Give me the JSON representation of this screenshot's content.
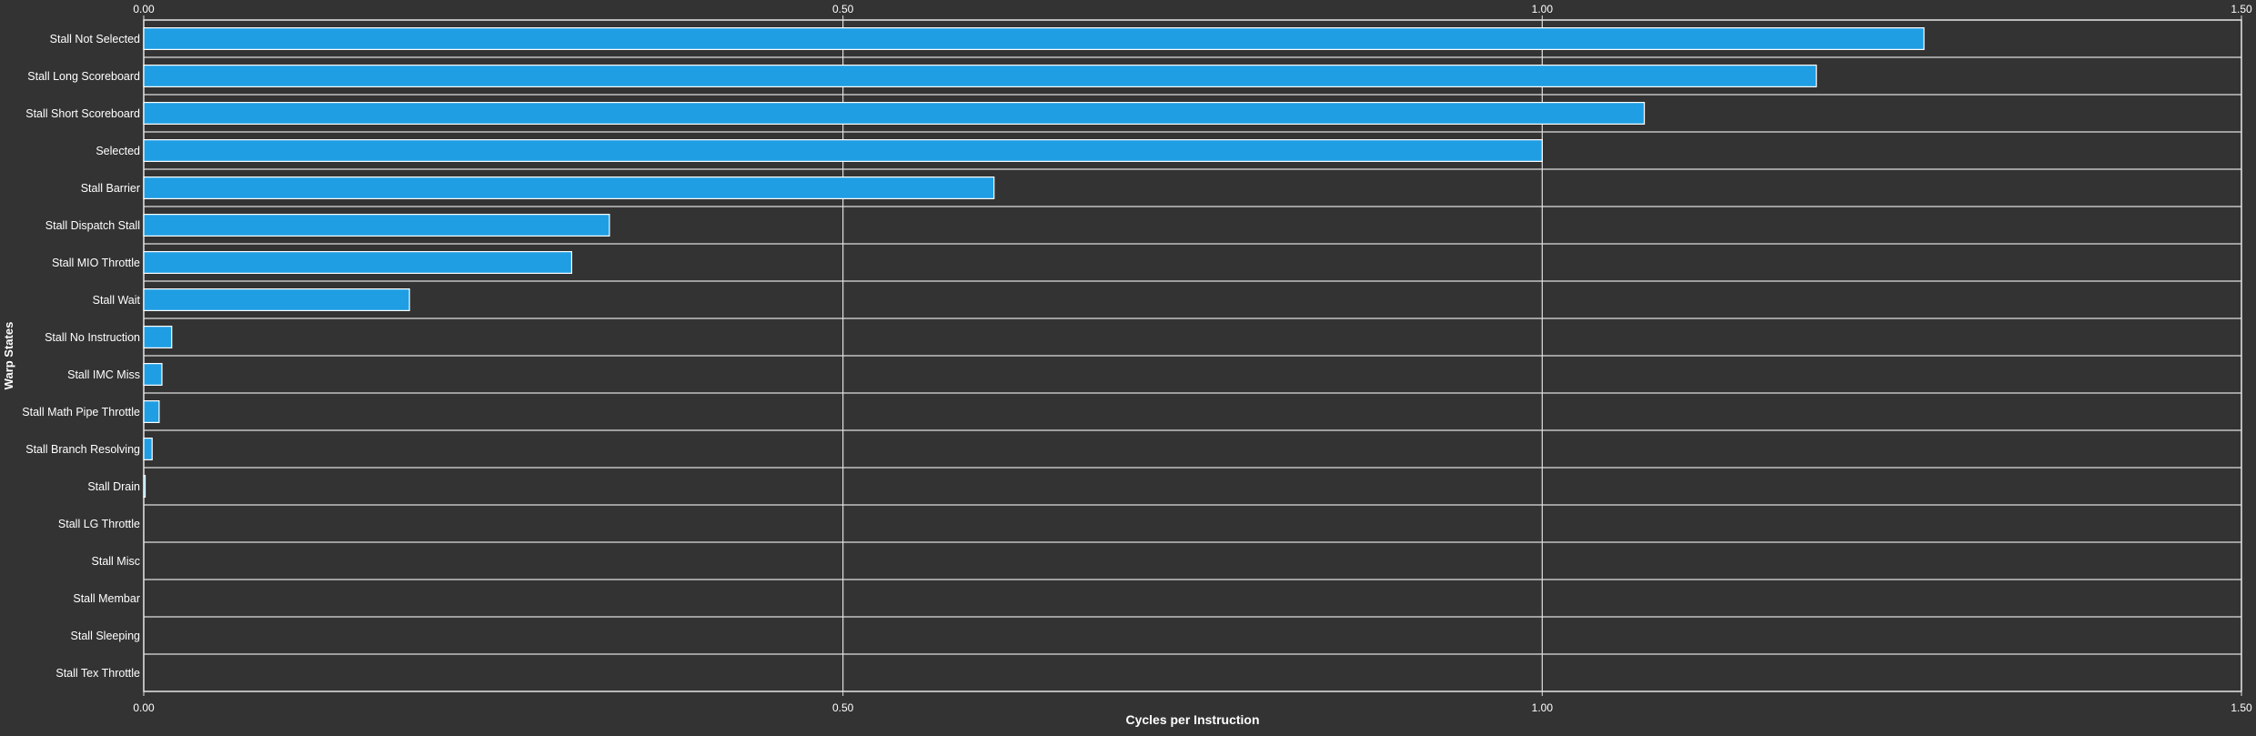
{
  "chart_data": {
    "type": "bar",
    "orientation": "horizontal",
    "xlabel": "Cycles per Instruction",
    "ylabel": "Warp States",
    "xlim": [
      0,
      1.5
    ],
    "x_ticks": [
      "0.00",
      "0.50",
      "1.00",
      "1.50"
    ],
    "x_tick_values": [
      0,
      0.5,
      1.0,
      1.5
    ],
    "grid": true,
    "bar_color": "#1f9ee3",
    "bar_edge_color": "#ffffff",
    "background_color": "#333333",
    "categories": [
      "Stall Not Selected",
      "Stall Long Scoreboard",
      "Stall Short Scoreboard",
      "Selected",
      "Stall Barrier",
      "Stall Dispatch Stall",
      "Stall MIO Throttle",
      "Stall Wait",
      "Stall No Instruction",
      "Stall IMC Miss",
      "Stall Math Pipe Throttle",
      "Stall Branch Resolving",
      "Stall Drain",
      "Stall LG Throttle",
      "Stall Misc",
      "Stall Membar",
      "Stall Sleeping",
      "Stall Tex Throttle"
    ],
    "values": [
      1.273,
      1.196,
      1.073,
      1.0,
      0.608,
      0.333,
      0.306,
      0.19,
      0.02,
      0.013,
      0.011,
      0.006,
      0.001,
      0,
      0,
      0,
      0,
      0
    ]
  }
}
